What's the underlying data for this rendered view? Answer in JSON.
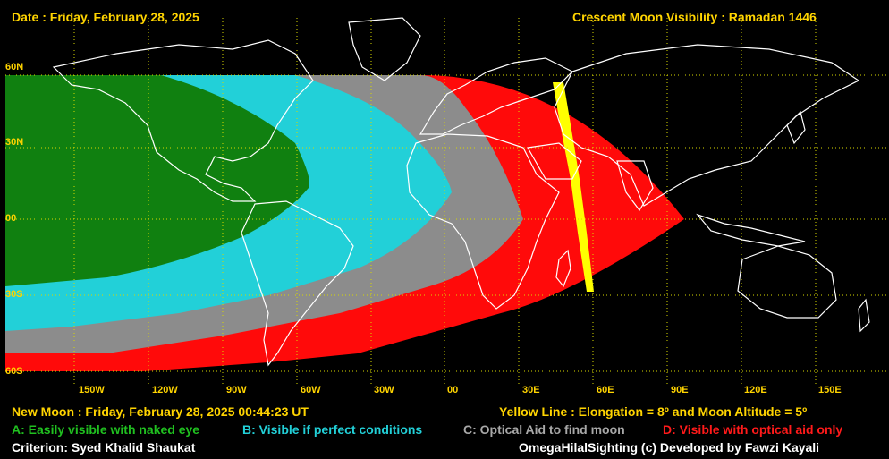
{
  "header": {
    "date_text": "Date : Friday, February 28, 2025",
    "title_text": "Crescent Moon Visibility : Ramadan  1446"
  },
  "map": {
    "lat_labels": [
      "60N",
      "30N",
      "00",
      "30S",
      "60S"
    ],
    "lon_labels": [
      "150W",
      "120W",
      "90W",
      "60W",
      "30W",
      "00",
      "30E",
      "60E",
      "90E",
      "120E",
      "150E"
    ],
    "colors": {
      "zone_a": "#108010",
      "zone_b": "#22d0d8",
      "zone_c": "#8c8c8c",
      "zone_d": "#ff0a0a",
      "yellow_line": "#ffff00",
      "coastline": "#ffffff",
      "grid": "#d8d800",
      "background": "#000000"
    }
  },
  "footer": {
    "new_moon_text": "New Moon : Friday, February 28, 2025  00:44:23  UT",
    "yellow_line_text": "Yellow Line : Elongation = 8º  and Moon Altitude = 5º",
    "legend_a": "A: Easily visible with naked eye",
    "legend_b": "B: Visible if perfect conditions",
    "legend_c": "C: Optical Aid to find moon",
    "legend_d": "D: Visible with optical aid only",
    "criterion_text": "Criterion: Syed Khalid Shaukat",
    "credit_text": "OmegaHilalSighting  (c)  Developed by Fawzi Kayali"
  }
}
